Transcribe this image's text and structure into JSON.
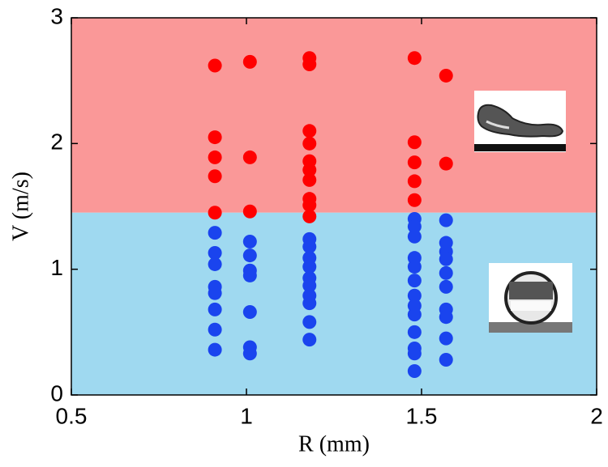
{
  "chart_data": {
    "type": "scatter",
    "xlabel": "R (mm)",
    "ylabel": "V (m/s)",
    "xlim": [
      0.5,
      2
    ],
    "ylim": [
      0,
      3
    ],
    "xticks": [
      0.5,
      1,
      1.5,
      2
    ],
    "yticks": [
      0,
      1,
      2,
      3
    ],
    "regions": [
      {
        "color": "#fa9898",
        "range": [
          1.45,
          3
        ]
      },
      {
        "color": "#9fd9f0",
        "range": [
          0,
          1.45
        ]
      }
    ],
    "series": [
      {
        "color": "#ff0000",
        "x": [
          0.91,
          0.91,
          0.91,
          0.91,
          0.91,
          1.01,
          1.01,
          1.01,
          1.18,
          1.18,
          1.18,
          1.18,
          1.18,
          1.18,
          1.18,
          1.18,
          1.18,
          1.18,
          1.48,
          1.48,
          1.48,
          1.48,
          1.48,
          1.57,
          1.57
        ],
        "values": [
          2.62,
          2.05,
          1.89,
          1.74,
          1.45,
          2.65,
          1.89,
          1.46,
          2.68,
          2.63,
          2.1,
          2.0,
          1.86,
          1.79,
          1.71,
          1.56,
          1.51,
          1.42,
          2.68,
          2.01,
          1.85,
          1.7,
          1.55,
          2.54,
          1.84
        ]
      },
      {
        "color": "#1a44ee",
        "x": [
          0.91,
          0.91,
          0.91,
          0.91,
          0.91,
          0.91,
          0.91,
          0.91,
          1.01,
          1.01,
          1.01,
          1.01,
          1.01,
          1.01,
          1.01,
          1.18,
          1.18,
          1.18,
          1.18,
          1.18,
          1.18,
          1.18,
          1.18,
          1.18,
          1.18,
          1.48,
          1.48,
          1.48,
          1.48,
          1.48,
          1.48,
          1.48,
          1.48,
          1.48,
          1.48,
          1.48,
          1.48,
          1.48,
          1.57,
          1.57,
          1.57,
          1.57,
          1.57,
          1.57,
          1.57,
          1.57,
          1.57,
          1.57
        ],
        "values": [
          1.29,
          1.13,
          1.04,
          0.86,
          0.81,
          0.68,
          0.52,
          0.36,
          1.22,
          1.11,
          0.99,
          0.95,
          0.66,
          0.38,
          0.33,
          1.24,
          1.18,
          1.09,
          1.02,
          0.93,
          0.87,
          0.79,
          0.73,
          0.58,
          0.44,
          1.4,
          1.34,
          1.26,
          1.09,
          1.02,
          0.91,
          0.79,
          0.71,
          0.64,
          0.5,
          0.37,
          0.33,
          0.19,
          1.39,
          1.21,
          1.14,
          1.08,
          0.97,
          0.86,
          0.68,
          0.62,
          0.45,
          0.28
        ]
      }
    ]
  }
}
